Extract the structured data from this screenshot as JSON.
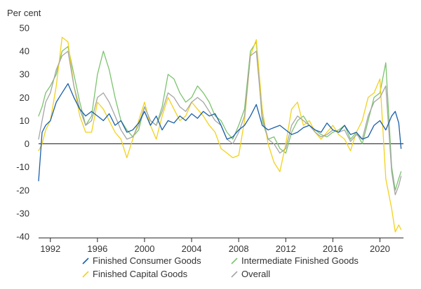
{
  "chart_data": {
    "type": "line",
    "ylabel": "Per cent",
    "ylim": [
      -40,
      50
    ],
    "xlim": [
      1991.0,
      2022.0
    ],
    "y_ticks": [
      50,
      40,
      30,
      20,
      10,
      0,
      -10,
      -20,
      -30,
      -40
    ],
    "y_tick_labels": [
      "50",
      "40",
      "30",
      "20",
      "10",
      "0",
      "-10",
      "-20",
      "-30",
      "-40"
    ],
    "x_ticks": [
      1992,
      1996,
      2000,
      2004,
      2008,
      2012,
      2016,
      2020
    ],
    "x_tick_labels": [
      "1992",
      "1996",
      "2000",
      "2004",
      "2008",
      "2012",
      "2016",
      "2020"
    ],
    "grid": false,
    "zero_line": true,
    "legend_position": "bottom",
    "series": [
      {
        "name": "Finished Consumer Goods",
        "color": "#1a5fa8",
        "x": [
          1991.0,
          1991.3,
          1991.6,
          1992.0,
          1992.5,
          1993.0,
          1993.5,
          1994.0,
          1994.5,
          1995.0,
          1995.5,
          1996.0,
          1996.5,
          1997.0,
          1997.5,
          1998.0,
          1998.5,
          1999.0,
          1999.5,
          2000.0,
          2000.5,
          2001.0,
          2001.5,
          2002.0,
          2002.5,
          2003.0,
          2003.5,
          2004.0,
          2004.5,
          2005.0,
          2005.5,
          2006.0,
          2006.5,
          2007.0,
          2007.5,
          2008.0,
          2008.5,
          2009.0,
          2009.5,
          2010.0,
          2010.5,
          2011.0,
          2011.5,
          2012.0,
          2012.5,
          2013.0,
          2013.5,
          2014.0,
          2014.5,
          2015.0,
          2015.5,
          2016.0,
          2016.5,
          2017.0,
          2017.5,
          2018.0,
          2018.5,
          2019.0,
          2019.5,
          2020.0,
          2020.5,
          2021.0,
          2021.3,
          2021.6,
          2021.8
        ],
        "y": [
          -16,
          5,
          8,
          10,
          18,
          22,
          26,
          20,
          15,
          12,
          14,
          12,
          10,
          13,
          8,
          10,
          5,
          6,
          9,
          14,
          8,
          12,
          6,
          10,
          9,
          12,
          10,
          13,
          11,
          14,
          12,
          13,
          8,
          2,
          3,
          6,
          8,
          12,
          17,
          8,
          6,
          7,
          8,
          6,
          4,
          5,
          7,
          8,
          6,
          5,
          9,
          6,
          5,
          8,
          4,
          5,
          2,
          3,
          8,
          10,
          6,
          12,
          14,
          9,
          -2
        ]
      },
      {
        "name": "Intermediate Finished Goods",
        "color": "#7cc36e",
        "x": [
          1991.0,
          1991.3,
          1991.6,
          1992.0,
          1992.5,
          1993.0,
          1993.5,
          1994.0,
          1994.5,
          1995.0,
          1995.5,
          1996.0,
          1996.5,
          1997.0,
          1997.5,
          1998.0,
          1998.5,
          1999.0,
          1999.5,
          2000.0,
          2000.5,
          2001.0,
          2001.5,
          2002.0,
          2002.5,
          2003.0,
          2003.5,
          2004.0,
          2004.5,
          2005.0,
          2005.5,
          2006.0,
          2006.5,
          2007.0,
          2007.5,
          2008.0,
          2008.5,
          2009.0,
          2009.5,
          2010.0,
          2010.5,
          2011.0,
          2011.5,
          2012.0,
          2012.5,
          2013.0,
          2013.5,
          2014.0,
          2014.5,
          2015.0,
          2015.5,
          2016.0,
          2016.5,
          2017.0,
          2017.5,
          2018.0,
          2018.5,
          2019.0,
          2019.5,
          2020.0,
          2020.5,
          2021.0,
          2021.3,
          2021.6,
          2021.8
        ],
        "y": [
          12,
          16,
          22,
          25,
          30,
          40,
          42,
          30,
          18,
          8,
          12,
          30,
          40,
          32,
          20,
          10,
          6,
          3,
          6,
          16,
          10,
          8,
          16,
          30,
          28,
          22,
          18,
          20,
          25,
          22,
          18,
          12,
          10,
          5,
          2,
          8,
          15,
          40,
          44,
          10,
          2,
          3,
          -2,
          -4,
          5,
          10,
          12,
          8,
          6,
          4,
          3,
          5,
          6,
          8,
          2,
          5,
          0,
          10,
          20,
          22,
          35,
          -10,
          -20,
          -15,
          -12
        ]
      },
      {
        "name": "Finished Capital Goods",
        "color": "#f2d21b",
        "x": [
          1991.0,
          1991.3,
          1991.6,
          1992.0,
          1992.5,
          1993.0,
          1993.5,
          1994.0,
          1994.5,
          1995.0,
          1995.5,
          1996.0,
          1996.5,
          1997.0,
          1997.5,
          1998.0,
          1998.5,
          1999.0,
          1999.5,
          2000.0,
          2000.5,
          2001.0,
          2001.5,
          2002.0,
          2002.5,
          2003.0,
          2003.5,
          2004.0,
          2004.5,
          2005.0,
          2005.5,
          2006.0,
          2006.5,
          2007.0,
          2007.5,
          2008.0,
          2008.5,
          2009.0,
          2009.5,
          2010.0,
          2010.5,
          2011.0,
          2011.5,
          2012.0,
          2012.5,
          2013.0,
          2013.5,
          2014.0,
          2014.5,
          2015.0,
          2015.5,
          2016.0,
          2016.5,
          2017.0,
          2017.5,
          2018.0,
          2018.5,
          2019.0,
          2019.5,
          2020.0,
          2020.5,
          2021.0,
          2021.3,
          2021.6,
          2021.8
        ],
        "y": [
          -3,
          0,
          6,
          10,
          25,
          46,
          44,
          25,
          12,
          5,
          5,
          18,
          15,
          10,
          5,
          2,
          -6,
          2,
          10,
          18,
          8,
          2,
          12,
          20,
          15,
          10,
          12,
          18,
          15,
          12,
          8,
          5,
          -2,
          -4,
          -6,
          -5,
          10,
          38,
          45,
          15,
          0,
          -8,
          -12,
          0,
          15,
          18,
          8,
          10,
          5,
          2,
          5,
          8,
          4,
          2,
          -3,
          5,
          10,
          20,
          22,
          28,
          -15,
          -28,
          -38,
          -35,
          -37
        ]
      },
      {
        "name": "Overall",
        "color": "#a5a5a5",
        "x": [
          1991.0,
          1991.3,
          1991.6,
          1992.0,
          1992.5,
          1993.0,
          1993.5,
          1994.0,
          1994.5,
          1995.0,
          1995.5,
          1996.0,
          1996.5,
          1997.0,
          1997.5,
          1998.0,
          1998.5,
          1999.0,
          1999.5,
          2000.0,
          2000.5,
          2001.0,
          2001.5,
          2002.0,
          2002.5,
          2003.0,
          2003.5,
          2004.0,
          2004.5,
          2005.0,
          2005.5,
          2006.0,
          2006.5,
          2007.0,
          2007.5,
          2008.0,
          2008.5,
          2009.0,
          2009.5,
          2010.0,
          2010.5,
          2011.0,
          2011.5,
          2012.0,
          2012.5,
          2013.0,
          2013.5,
          2014.0,
          2014.5,
          2015.0,
          2015.5,
          2016.0,
          2016.5,
          2017.0,
          2017.5,
          2018.0,
          2018.5,
          2019.0,
          2019.5,
          2020.0,
          2020.5,
          2021.0,
          2021.3,
          2021.6,
          2021.8
        ],
        "y": [
          2,
          10,
          18,
          22,
          32,
          38,
          40,
          25,
          15,
          8,
          10,
          20,
          22,
          18,
          12,
          6,
          2,
          3,
          8,
          16,
          10,
          8,
          14,
          22,
          20,
          16,
          14,
          18,
          20,
          18,
          14,
          10,
          8,
          2,
          0,
          5,
          12,
          38,
          40,
          12,
          2,
          0,
          -4,
          -2,
          8,
          12,
          10,
          8,
          5,
          3,
          4,
          6,
          5,
          6,
          1,
          4,
          2,
          12,
          18,
          20,
          25,
          -12,
          -22,
          -18,
          -14
        ]
      }
    ]
  }
}
